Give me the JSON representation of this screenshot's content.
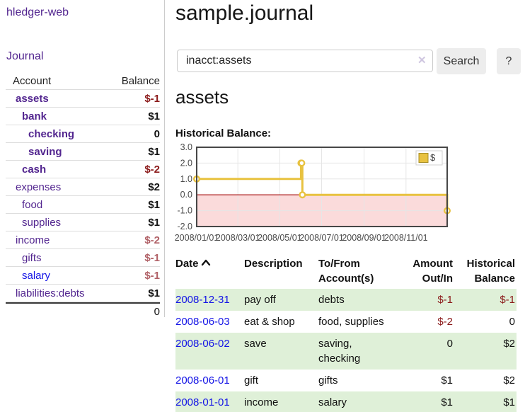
{
  "app": {
    "brand": "hledger-web",
    "nav_journal": "Journal",
    "title": "sample.journal"
  },
  "search": {
    "value": "inacct:assets",
    "clear_icon": "✕",
    "button_label": "Search",
    "help_label": "?"
  },
  "sidebar": {
    "header": {
      "account": "Account",
      "balance": "Balance"
    },
    "accounts": [
      {
        "name": "assets",
        "level": 1,
        "bold": true,
        "balance": "$-1",
        "neg": "strong",
        "link": "purple"
      },
      {
        "name": "bank",
        "level": 2,
        "bold": true,
        "balance": "$1",
        "neg": null,
        "link": "purple"
      },
      {
        "name": "checking",
        "level": 3,
        "bold": true,
        "balance": "0",
        "neg": null,
        "link": "purple"
      },
      {
        "name": "saving",
        "level": 3,
        "bold": true,
        "balance": "$1",
        "neg": null,
        "link": "purple"
      },
      {
        "name": "cash",
        "level": 2,
        "bold": true,
        "balance": "$-2",
        "neg": "strong",
        "link": "purple"
      },
      {
        "name": "expenses",
        "level": 1,
        "bold": false,
        "balance": "$2",
        "neg": null,
        "link": "purple"
      },
      {
        "name": "food",
        "level": 2,
        "bold": false,
        "balance": "$1",
        "neg": null,
        "link": "purple"
      },
      {
        "name": "supplies",
        "level": 2,
        "bold": false,
        "balance": "$1",
        "neg": null,
        "link": "purple"
      },
      {
        "name": "income",
        "level": 1,
        "bold": false,
        "balance": "$-2",
        "neg": "soft",
        "link": "purple"
      },
      {
        "name": "gifts",
        "level": 2,
        "bold": false,
        "balance": "$-1",
        "neg": "soft",
        "link": "purple"
      },
      {
        "name": "salary",
        "level": 2,
        "bold": false,
        "balance": "$-1",
        "neg": "soft",
        "link": "blue"
      },
      {
        "name": "liabilities:debts",
        "level": 1,
        "bold": false,
        "balance": "$1",
        "neg": null,
        "link": "purple"
      }
    ],
    "total": "0"
  },
  "main": {
    "account_heading": "assets",
    "chart_label": "Historical Balance:"
  },
  "chart_data": {
    "type": "line",
    "step": true,
    "title": "Historical Balance:",
    "series": [
      {
        "name": "$",
        "color": "#e8c240",
        "x": [
          "2008-01-01",
          "2008-06-01",
          "2008-06-02",
          "2008-06-03",
          "2008-12-31"
        ],
        "y": [
          1,
          2,
          2,
          0,
          -1
        ]
      }
    ],
    "xlim": [
      "2008-01-01",
      "2008-12-31"
    ],
    "ylim": [
      -2,
      3
    ],
    "yticks": [
      {
        "v": 3,
        "label": "3.0"
      },
      {
        "v": 2,
        "label": "2.0"
      },
      {
        "v": 1,
        "label": "1.0"
      },
      {
        "v": 0,
        "label": "0.0"
      },
      {
        "v": -1,
        "label": "-1.0"
      },
      {
        "v": -2,
        "label": "-2.0"
      }
    ],
    "xticks": [
      {
        "date": "2008-01-01",
        "label": "2008/01/01"
      },
      {
        "date": "2008-03-01",
        "label": "2008/03/01"
      },
      {
        "date": "2008-05-01",
        "label": "2008/05/01"
      },
      {
        "date": "2008-07-01",
        "label": "2008/07/01"
      },
      {
        "date": "2008-09-01",
        "label": "2008/09/01"
      },
      {
        "date": "2008-11-01",
        "label": "2008/11/01"
      }
    ],
    "legend": {
      "label": "$",
      "position": "top-right"
    },
    "grid": true,
    "negative_region_fill": "#fbdbdb",
    "zero_line_color": "#a00000",
    "border_color": "#474747"
  },
  "table": {
    "headers": [
      {
        "line1": "Date",
        "line2": "",
        "sort": "asc"
      },
      {
        "line1": "Description",
        "line2": ""
      },
      {
        "line1": "To/From",
        "line2": "Account(s)"
      },
      {
        "line1": "Amount",
        "line2": "Out/In"
      },
      {
        "line1": "Historical",
        "line2": "Balance"
      }
    ],
    "rows": [
      {
        "date": "2008-12-31",
        "description": "pay off",
        "accounts": "debts",
        "amount": "$-1",
        "amount_neg": true,
        "balance": "$-1",
        "balance_neg": true
      },
      {
        "date": "2008-06-03",
        "description": "eat & shop",
        "accounts": "food, supplies",
        "amount": "$-2",
        "amount_neg": true,
        "balance": "0",
        "balance_neg": false
      },
      {
        "date": "2008-06-02",
        "description": "save",
        "accounts": "saving, checking",
        "amount": "0",
        "amount_neg": false,
        "balance": "$2",
        "balance_neg": false
      },
      {
        "date": "2008-06-01",
        "description": "gift",
        "accounts": "gifts",
        "amount": "$1",
        "amount_neg": false,
        "balance": "$2",
        "balance_neg": false
      },
      {
        "date": "2008-01-01",
        "description": "income",
        "accounts": "salary",
        "amount": "$1",
        "amount_neg": false,
        "balance": "$1",
        "balance_neg": false
      }
    ]
  }
}
